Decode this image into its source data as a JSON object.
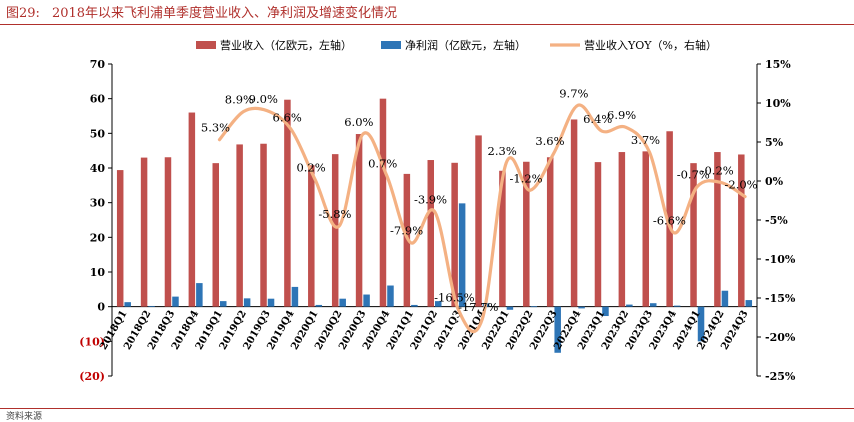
{
  "figure": {
    "number": "图29:",
    "title": "2018年以来飞利浦单季度营业收入、净利润及增速变化情况",
    "footer": "资料来源"
  },
  "colors": {
    "revenue": "#c0504d",
    "profit": "#2e75b6",
    "yoy": "#f4b183",
    "title": "#b0302c",
    "negative_tick": "#c00000"
  },
  "chart_data": {
    "type": "bar",
    "categories": [
      "2018Q1",
      "2018Q2",
      "2018Q3",
      "2018Q4",
      "2019Q1",
      "2019Q2",
      "2019Q3",
      "2019Q4",
      "2020Q1",
      "2020Q2",
      "2020Q3",
      "2020Q4",
      "2021Q1",
      "2021Q2",
      "2021Q3",
      "2021Q4",
      "2022Q1",
      "2022Q2",
      "2022Q3",
      "2022Q4",
      "2023Q1",
      "2023Q2",
      "2023Q3",
      "2023Q4",
      "2024Q1",
      "2024Q2",
      "2024Q3"
    ],
    "series": [
      {
        "name": "营业收入（亿欧元，左轴）",
        "type": "bar",
        "axis": "left",
        "values": [
          39.4,
          43.0,
          43.1,
          56.0,
          41.4,
          46.8,
          47.0,
          59.7,
          40.8,
          44.0,
          49.8,
          60.0,
          38.3,
          42.3,
          41.5,
          49.4,
          39.2,
          41.8,
          43.1,
          54.0,
          41.7,
          44.6,
          44.8,
          50.6,
          41.4,
          44.6,
          43.9
        ]
      },
      {
        "name": "净利润（亿欧元，左轴）",
        "type": "bar",
        "axis": "left",
        "values": [
          1.3,
          0.2,
          2.9,
          6.8,
          1.6,
          2.4,
          2.3,
          5.7,
          0.5,
          2.3,
          3.5,
          6.1,
          0.5,
          1.6,
          29.8,
          1.0,
          -0.9,
          0.1,
          -13.3,
          -0.5,
          -2.7,
          0.6,
          1.0,
          0.3,
          -10.0,
          4.6,
          1.9
        ]
      },
      {
        "name": "营业收入YOY（%，右轴）",
        "type": "line",
        "axis": "right",
        "values": [
          null,
          null,
          null,
          null,
          5.3,
          8.9,
          9.0,
          6.6,
          0.2,
          -5.8,
          6.0,
          0.7,
          -7.9,
          -3.9,
          -16.5,
          -17.7,
          2.3,
          -1.2,
          3.6,
          9.7,
          6.4,
          6.9,
          3.7,
          -6.6,
          -0.7,
          -0.2,
          -2.0
        ],
        "labels": [
          null,
          null,
          null,
          null,
          "5.3%",
          "8.9%",
          "9.0%",
          "6.6%",
          "0.2%",
          "-5.8%",
          "6.0%",
          "0.7%",
          "-7.9%",
          "-3.9%",
          "-16.5%",
          "-17.7%",
          "2.3%",
          "-1.2%",
          "3.6%",
          "9.7%",
          "6.4%",
          "6.9%",
          "3.7%",
          "-6.6%",
          "-0.7%",
          "-0.2%",
          "-2.0%"
        ]
      }
    ],
    "left_axis": {
      "min": -20,
      "max": 70,
      "ticks": [
        "70",
        "60",
        "50",
        "40",
        "30",
        "20",
        "10",
        "0",
        "(10)",
        "(20)"
      ]
    },
    "right_axis": {
      "min": -25,
      "max": 15,
      "ticks": [
        "15%",
        "10%",
        "5%",
        "0%",
        "-5%",
        "-10%",
        "-15%",
        "-20%",
        "-25%"
      ]
    },
    "grid": false,
    "legend": "top"
  }
}
